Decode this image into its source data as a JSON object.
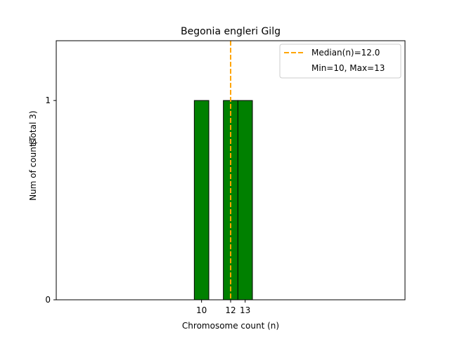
{
  "chart_data": {
    "type": "bar",
    "title": "Begonia engleri Gilg",
    "xlabel": "Chromosome count (n)",
    "ylabel": "Num of counts",
    "ylabel_total": "(Total 3)",
    "bins": [
      {
        "x": 10,
        "count": 1
      },
      {
        "x": 12,
        "count": 1
      },
      {
        "x": 13,
        "count": 1
      }
    ],
    "xticks": [
      10,
      12,
      13
    ],
    "yticks": [
      0,
      1
    ],
    "xlim": [
      0,
      24
    ],
    "ylim": [
      0,
      1.3
    ],
    "baseline_range": [
      0,
      17
    ],
    "median": 12.0,
    "legend": {
      "median_label": "Median(n)=12.0",
      "range_label": "Min=10, Max=13",
      "placement": "top-right"
    },
    "colors": {
      "bar_fill": "#008000",
      "bar_edge": "#000000",
      "median_line": "#FFA500",
      "axes": "#000000"
    }
  }
}
